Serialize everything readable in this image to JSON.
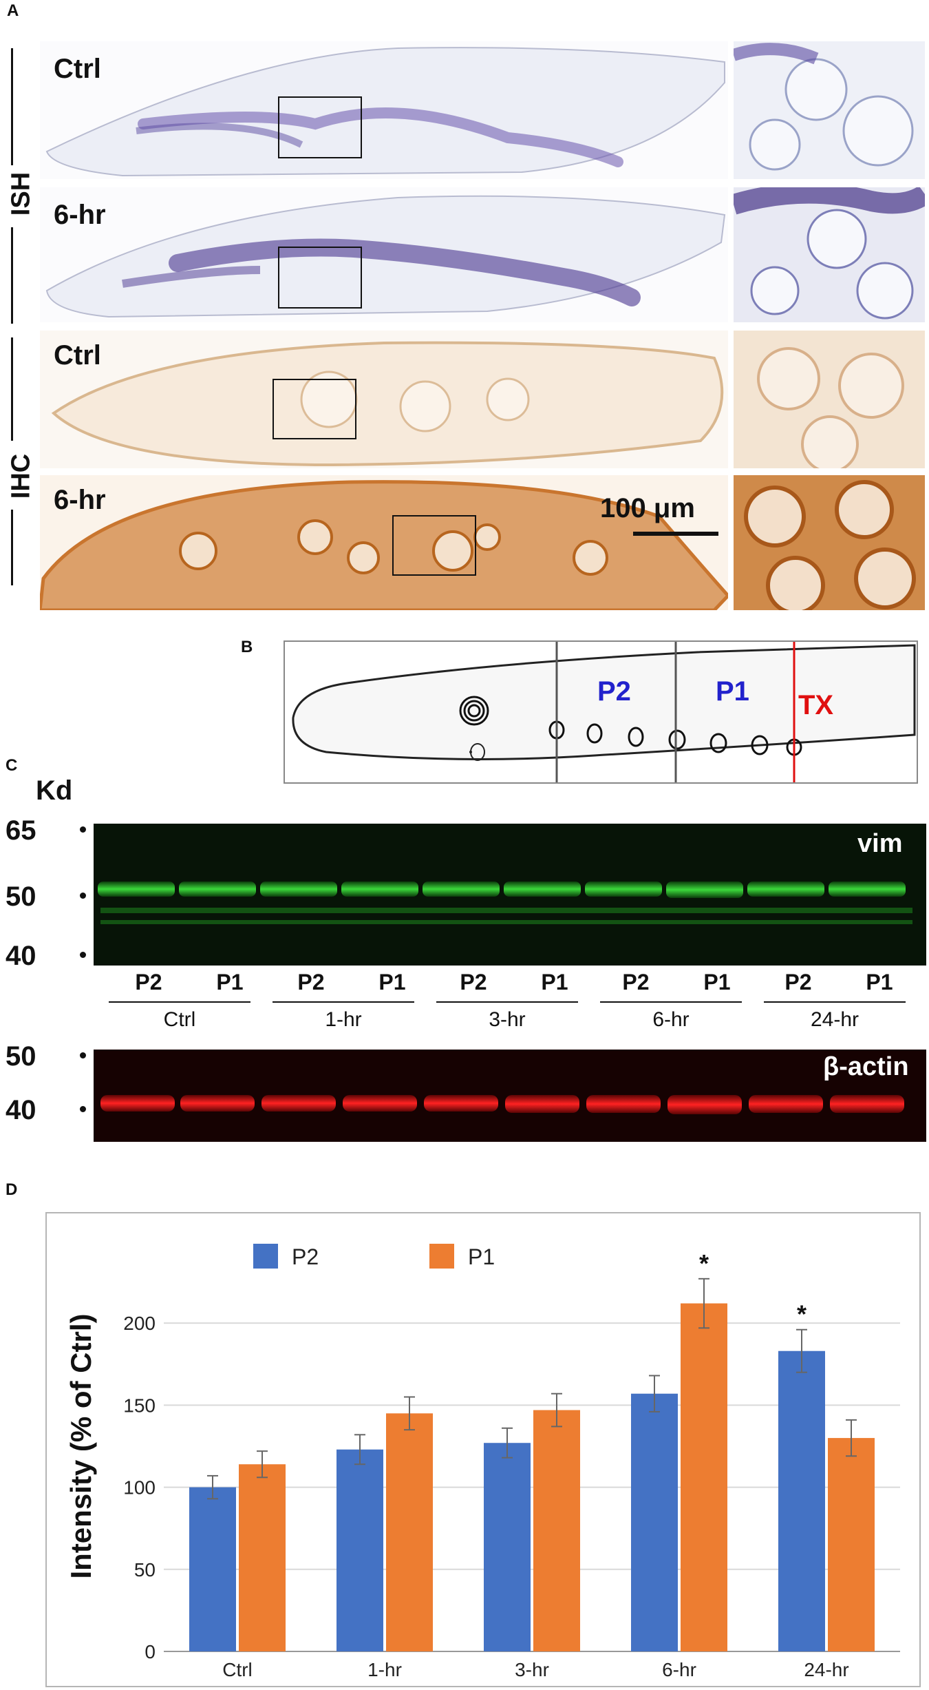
{
  "panels": {
    "a": "A",
    "b": "B",
    "c": "C",
    "d": "D"
  },
  "panel_a": {
    "row_groups": [
      "ISH",
      "IHC"
    ],
    "tile_labels": [
      "Ctrl",
      "6-hr",
      "Ctrl",
      "6-hr"
    ],
    "scale_bar": "100 μm"
  },
  "panel_b": {
    "labels": [
      "P2",
      "P1",
      "TX"
    ],
    "colors": {
      "p_labels": "#2222cc",
      "tx": "#e01010"
    }
  },
  "panel_c": {
    "kd_title": "Kd",
    "blot1_markers": [
      "65",
      "50",
      "40"
    ],
    "blot1_label": "vim",
    "blot2_markers": [
      "50",
      "40"
    ],
    "blot2_label": "β-actin",
    "lanes": [
      "P2",
      "P1",
      "P2",
      "P1",
      "P2",
      "P1",
      "P2",
      "P1",
      "P2",
      "P1"
    ],
    "groups": [
      "Ctrl",
      "1-hr",
      "3-hr",
      "6-hr",
      "24-hr"
    ],
    "colors": {
      "vim": "#2ed12e",
      "actin": "#ff1a1a"
    }
  },
  "chart_data": {
    "type": "bar",
    "categories": [
      "Ctrl",
      "1-hr",
      "3-hr",
      "6-hr",
      "24-hr"
    ],
    "series": [
      {
        "name": "P2",
        "color": "#4472c4",
        "values": [
          100,
          123,
          127,
          157,
          183
        ],
        "errors": [
          7,
          9,
          9,
          11,
          13
        ]
      },
      {
        "name": "P1",
        "color": "#ed7d31",
        "values": [
          114,
          145,
          147,
          212,
          130
        ],
        "errors": [
          8,
          10,
          10,
          15,
          11
        ]
      }
    ],
    "significance": [
      "",
      "",
      "",
      "*",
      "*"
    ],
    "significance_series": [
      "",
      "",
      "",
      "P1",
      "P2"
    ],
    "ylabel": "Intensity (% of Ctrl)",
    "yticks": [
      "0",
      "50",
      "100",
      "150",
      "200"
    ],
    "ylim": [
      0,
      250
    ],
    "legend": "top-left",
    "grid": true
  }
}
